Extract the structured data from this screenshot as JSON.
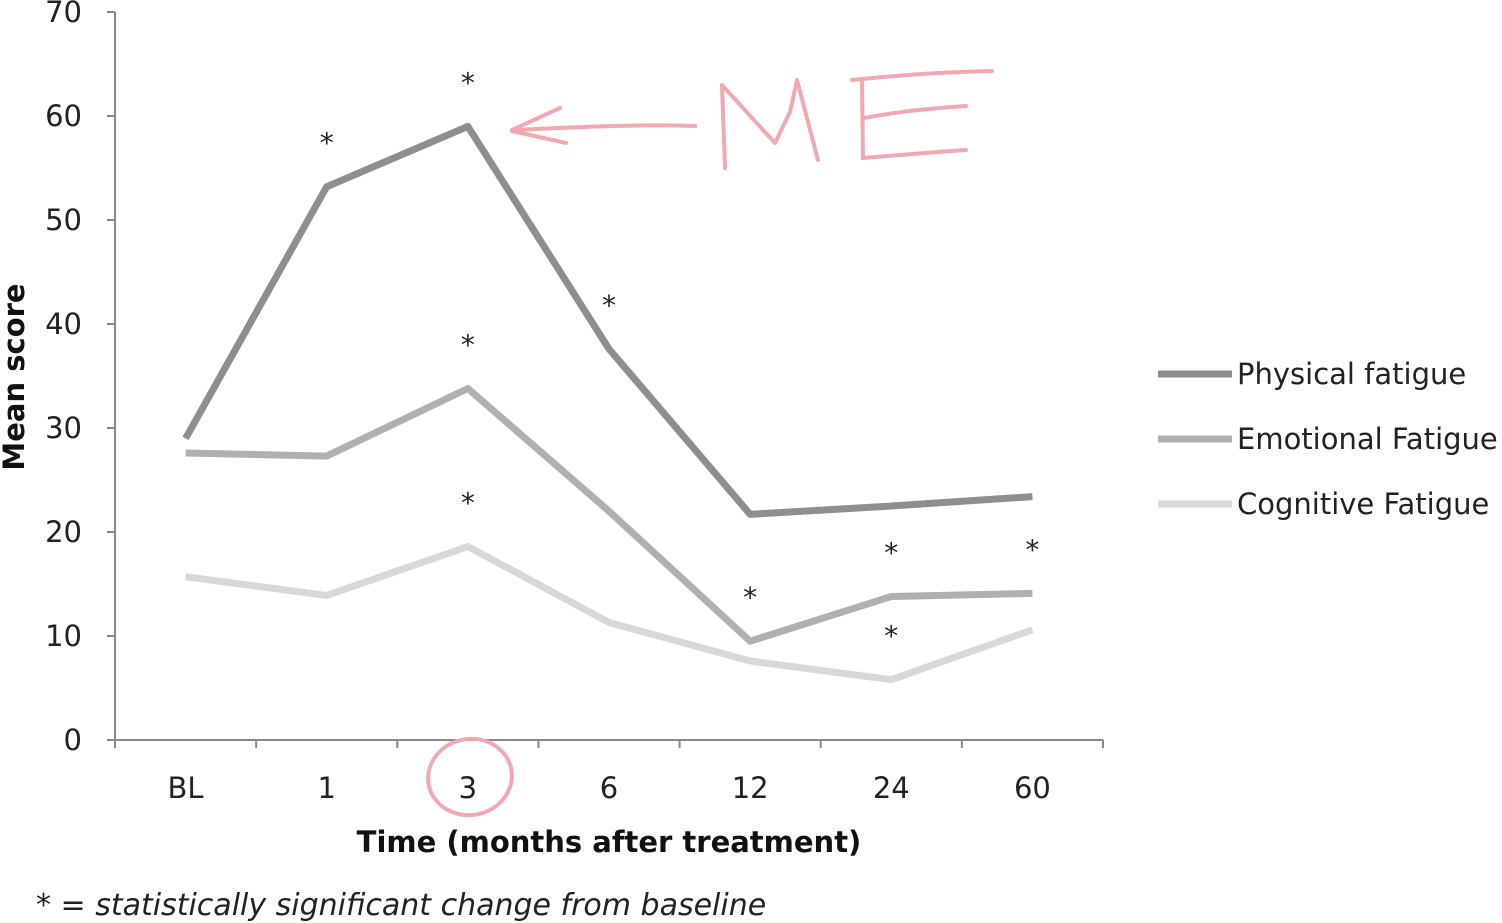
{
  "chart_data": {
    "type": "line",
    "categories": [
      "BL",
      "1",
      "3",
      "6",
      "12",
      "24",
      "60"
    ],
    "xlabel": "Time (months after treatment)",
    "ylabel": "Mean score",
    "ylim": [
      0,
      70
    ],
    "yticks": [
      "0",
      "10",
      "20",
      "30",
      "40",
      "50",
      "60",
      "70"
    ],
    "grid": false,
    "legend_position": "right",
    "series": [
      {
        "name": "Physical fatigue",
        "color": "#8e8e8e",
        "values": [
          29,
          53.2,
          59,
          37.6,
          21.7,
          22.5,
          23.4
        ],
        "significant": [
          false,
          true,
          true,
          true,
          false,
          false,
          false
        ]
      },
      {
        "name": "Emotional Fatigue",
        "color": "#b0b0b0",
        "values": [
          27.6,
          27.3,
          33.8,
          22,
          9.5,
          13.8,
          14.1
        ],
        "significant": [
          false,
          false,
          true,
          false,
          true,
          true,
          true
        ]
      },
      {
        "name": "Cognitive Fatigue",
        "color": "#d8d8d8",
        "values": [
          15.7,
          13.9,
          18.6,
          11.3,
          7.6,
          5.8,
          10.6
        ],
        "significant": [
          false,
          false,
          true,
          false,
          false,
          true,
          false
        ]
      }
    ],
    "significance_marker": "*",
    "footnote": "* = statistically significant change from baseline",
    "annotation": {
      "text": "ME",
      "color": "#f2a8b0",
      "points_to": {
        "series": "Physical fatigue",
        "category": "3"
      },
      "circled_category": "3"
    }
  }
}
